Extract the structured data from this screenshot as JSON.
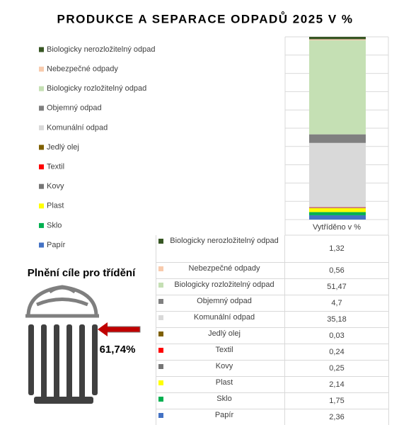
{
  "chart_data": {
    "type": "stacked-bar",
    "title": "PRODUKCE A SEPARACE ODPADŮ 2025 V %",
    "categories": [
      "Vytříděno v %"
    ],
    "ylim": [
      0,
      100
    ],
    "yticks": [
      0,
      10,
      20,
      30,
      40,
      50,
      60,
      70,
      80,
      90,
      100
    ],
    "grid": true,
    "series": [
      {
        "name": "Biologicky nerozložitelný odpad",
        "color": "#375623",
        "values": [
          1.32
        ],
        "value_labels": [
          "1,32"
        ]
      },
      {
        "name": "Nebezpečné odpady",
        "color": "#f8cbad",
        "values": [
          0.56
        ],
        "value_labels": [
          "0,56"
        ]
      },
      {
        "name": "Biologicky rozložitelný odpad",
        "color": "#c5e0b4",
        "values": [
          51.47
        ],
        "value_labels": [
          "51,47"
        ]
      },
      {
        "name": "Objemný odpad",
        "color": "#808080",
        "values": [
          4.7
        ],
        "value_labels": [
          "4,7"
        ]
      },
      {
        "name": "Komunální odpad",
        "color": "#d9d9d9",
        "values": [
          35.18
        ],
        "value_labels": [
          "35,18"
        ]
      },
      {
        "name": "Jedlý olej",
        "color": "#7f6000",
        "values": [
          0.03
        ],
        "value_labels": [
          "0,03"
        ]
      },
      {
        "name": "Textil",
        "color": "#ff0000",
        "values": [
          0.24
        ],
        "value_labels": [
          "0,24"
        ]
      },
      {
        "name": "Kovy",
        "color": "#767676",
        "values": [
          0.25
        ],
        "value_labels": [
          "0,25"
        ]
      },
      {
        "name": "Plast",
        "color": "#ffff00",
        "values": [
          2.14
        ],
        "value_labels": [
          "2,14"
        ]
      },
      {
        "name": "Sklo",
        "color": "#00b050",
        "values": [
          1.75
        ],
        "value_labels": [
          "1,75"
        ]
      },
      {
        "name": "Papír",
        "color": "#4472c4",
        "values": [
          2.36
        ],
        "value_labels": [
          "2,36"
        ]
      }
    ]
  },
  "goal": {
    "title": "Plnění cíle pro třídění",
    "label": "61,74%"
  }
}
